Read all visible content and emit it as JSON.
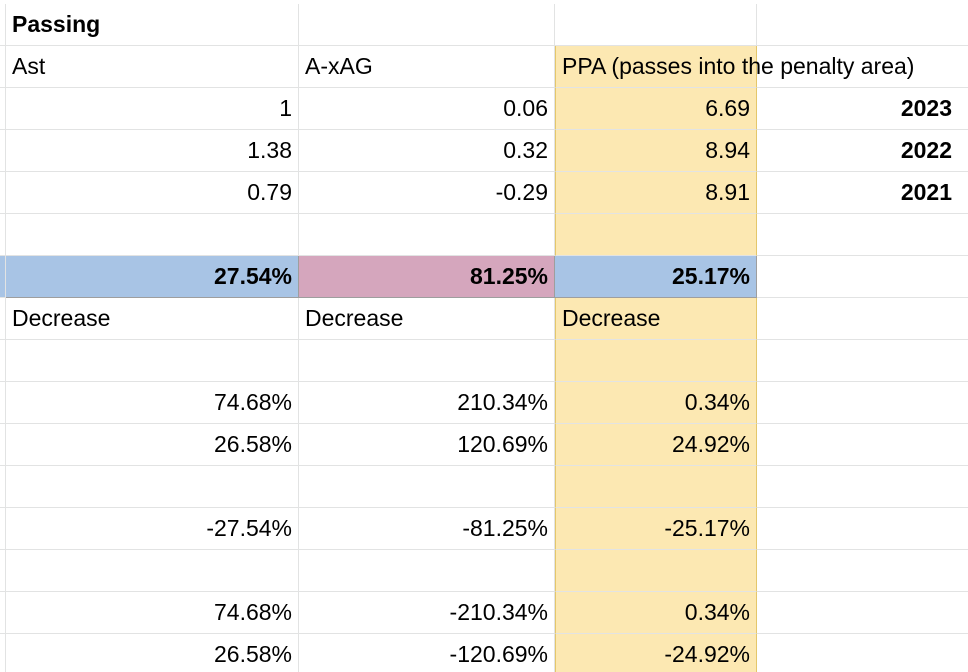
{
  "sheet": {
    "rows": [
      [
        "Passing",
        "",
        "",
        ""
      ],
      [
        "Ast",
        "A-xAG",
        "PPA (passes into the penalty area)",
        ""
      ],
      [
        "1",
        "0.06",
        "6.69",
        "2023"
      ],
      [
        "1.38",
        "0.32",
        "8.94",
        "2022"
      ],
      [
        "0.79",
        "-0.29",
        "8.91",
        "2021"
      ],
      [
        "",
        "",
        "",
        ""
      ],
      [
        "27.54%",
        "81.25%",
        "25.17%",
        ""
      ],
      [
        "Decrease",
        "Decrease",
        "Decrease",
        ""
      ],
      [
        "",
        "",
        "",
        ""
      ],
      [
        "74.68%",
        "210.34%",
        "0.34%",
        ""
      ],
      [
        "26.58%",
        "120.69%",
        "24.92%",
        ""
      ],
      [
        "",
        "",
        "",
        ""
      ],
      [
        "-27.54%",
        "-81.25%",
        "-25.17%",
        ""
      ],
      [
        "",
        "",
        "",
        ""
      ],
      [
        "74.68%",
        "-210.34%",
        "0.34%",
        ""
      ],
      [
        "26.58%",
        "-120.69%",
        "-24.92%",
        ""
      ]
    ]
  },
  "colors": {
    "grid": "#e2e3e3",
    "ppa_column": "#fce8b2",
    "ast_total": "#a8c4e5",
    "axag_total": "#d5a6bd",
    "ppa_total": "#a8c4e5"
  }
}
